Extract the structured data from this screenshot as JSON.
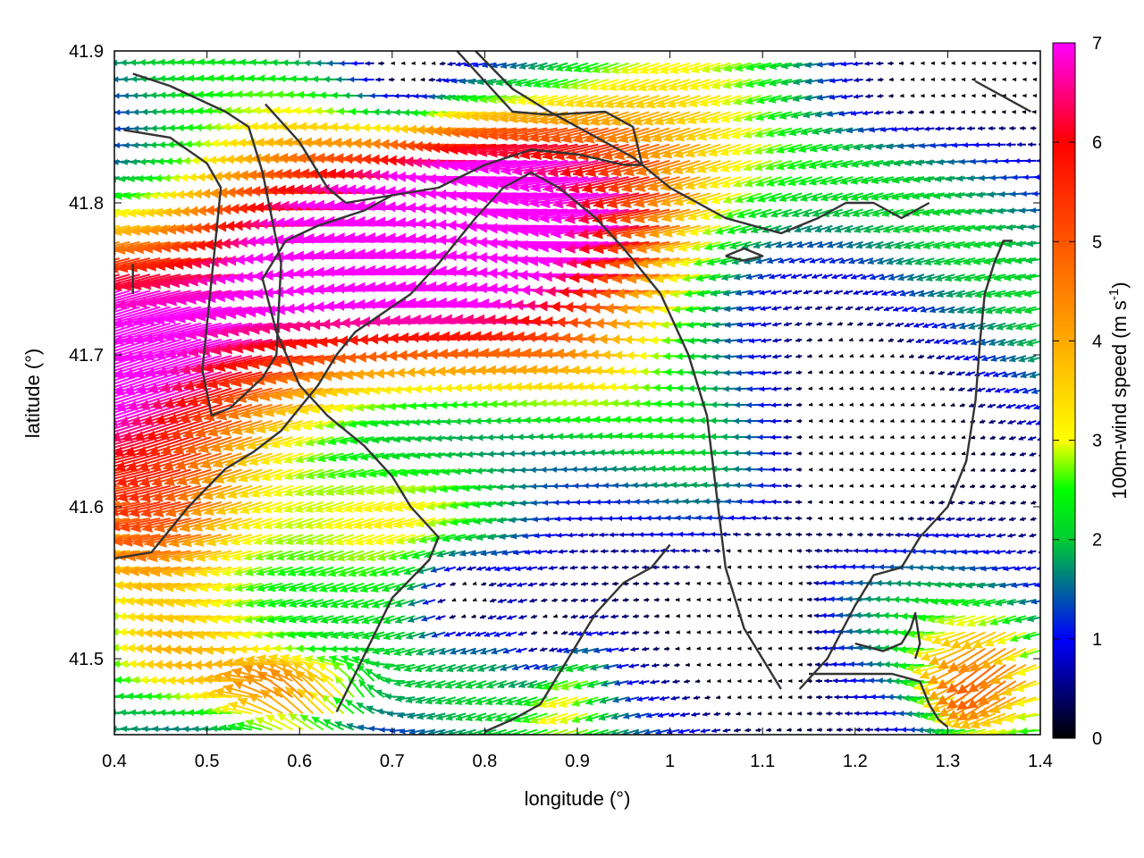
{
  "chart_data": {
    "type": "vector-field",
    "xlabel": "longitude (°)",
    "ylabel": "latitude (°)",
    "colorbar_label": "100m-wind speed (m s",
    "colorbar_label_sup": "-1",
    "colorbar_label_close": ")",
    "xlim": [
      0.4,
      1.4
    ],
    "ylim": [
      41.45,
      41.9
    ],
    "cbar_range": [
      0,
      7
    ],
    "x_ticks": [
      "0.4",
      "0.5",
      "0.6",
      "0.7",
      "0.8",
      "0.9",
      "1",
      "1.1",
      "1.2",
      "1.3",
      "1.4"
    ],
    "y_ticks": [
      "41.5",
      "41.6",
      "41.7",
      "41.8",
      "41.9"
    ],
    "cbar_ticks": [
      "0",
      "1",
      "2",
      "3",
      "4",
      "5",
      "6",
      "7"
    ],
    "colormap": [
      "#000000",
      "#0000ff",
      "#00ff00",
      "#ffff00",
      "#ff9900",
      "#ff0000",
      "#ff00ff"
    ],
    "contour_color": "#333333",
    "arrow_grid_spacing": [
      0.011,
      0.0107
    ],
    "wind_field_description": "mostly easterly flow (arrows pointing west); strongest 6-7 m/s jet along the central valley west of 0.9; weak 0-1 m/s winds in the east around 1.1-1.3 / 41.5-41.7",
    "contours": [
      [
        [
          0.41,
          41.848
        ],
        [
          0.46,
          41.843
        ],
        [
          0.5,
          41.826
        ],
        [
          0.515,
          41.81
        ],
        [
          0.51,
          41.78
        ],
        [
          0.505,
          41.75
        ],
        [
          0.5,
          41.72
        ],
        [
          0.495,
          41.69
        ],
        [
          0.505,
          41.66
        ],
        [
          0.525,
          41.665
        ],
        [
          0.56,
          41.685
        ],
        [
          0.575,
          41.7
        ],
        [
          0.58,
          41.76
        ],
        [
          0.56,
          41.82
        ],
        [
          0.545,
          41.85
        ],
        [
          0.52,
          41.86
        ],
        [
          0.46,
          41.877
        ],
        [
          0.42,
          41.885
        ]
      ],
      [
        [
          0.563,
          41.865
        ],
        [
          0.6,
          41.84
        ],
        [
          0.63,
          41.81
        ],
        [
          0.65,
          41.8
        ],
        [
          0.7,
          41.805
        ],
        [
          0.75,
          41.81
        ],
        [
          0.8,
          41.825
        ],
        [
          0.85,
          41.835
        ],
        [
          0.9,
          41.832
        ],
        [
          0.95,
          41.825
        ],
        [
          0.97,
          41.825
        ],
        [
          0.96,
          41.85
        ],
        [
          0.93,
          41.86
        ],
        [
          0.87,
          41.858
        ],
        [
          0.83,
          41.86
        ],
        [
          0.8,
          41.88
        ],
        [
          0.77,
          41.9
        ]
      ],
      [
        [
          0.4,
          41.566
        ],
        [
          0.44,
          41.57
        ],
        [
          0.48,
          41.6
        ],
        [
          0.52,
          41.625
        ],
        [
          0.55,
          41.636
        ],
        [
          0.58,
          41.65
        ],
        [
          0.62,
          41.68
        ],
        [
          0.64,
          41.7
        ],
        [
          0.66,
          41.715
        ],
        [
          0.72,
          41.74
        ],
        [
          0.75,
          41.76
        ],
        [
          0.79,
          41.79
        ],
        [
          0.82,
          41.81
        ],
        [
          0.85,
          41.82
        ],
        [
          0.88,
          41.81
        ],
        [
          0.92,
          41.79
        ],
        [
          0.95,
          41.77
        ],
        [
          0.99,
          41.74
        ],
        [
          1.02,
          41.7
        ],
        [
          1.04,
          41.66
        ],
        [
          1.05,
          41.61
        ],
        [
          1.06,
          41.56
        ],
        [
          1.08,
          41.52
        ],
        [
          1.1,
          41.5
        ],
        [
          1.12,
          41.48
        ]
      ],
      [
        [
          0.64,
          41.465
        ],
        [
          0.66,
          41.49
        ],
        [
          0.7,
          41.54
        ],
        [
          0.74,
          41.565
        ],
        [
          0.75,
          41.58
        ],
        [
          0.72,
          41.6
        ],
        [
          0.7,
          41.62
        ],
        [
          0.67,
          41.64
        ],
        [
          0.63,
          41.66
        ],
        [
          0.6,
          41.68
        ],
        [
          0.575,
          41.715
        ],
        [
          0.56,
          41.75
        ],
        [
          0.585,
          41.775
        ],
        [
          0.62,
          41.785
        ],
        [
          0.67,
          41.795
        ],
        [
          0.7,
          41.805
        ]
      ],
      [
        [
          0.79,
          41.9
        ],
        [
          0.83,
          41.875
        ],
        [
          0.87,
          41.86
        ],
        [
          0.9,
          41.85
        ],
        [
          0.93,
          41.84
        ],
        [
          0.96,
          41.83
        ],
        [
          0.98,
          41.82
        ],
        [
          1.0,
          41.81
        ],
        [
          1.03,
          41.8
        ],
        [
          1.06,
          41.79
        ],
        [
          1.09,
          41.785
        ],
        [
          1.12,
          41.78
        ],
        [
          1.16,
          41.79
        ],
        [
          1.19,
          41.8
        ],
        [
          1.22,
          41.8
        ],
        [
          1.25,
          41.79
        ],
        [
          1.28,
          41.8
        ]
      ],
      [
        [
          1.06,
          41.765
        ],
        [
          1.08,
          41.762
        ],
        [
          1.1,
          41.765
        ],
        [
          1.08,
          41.77
        ],
        [
          1.06,
          41.765
        ]
      ],
      [
        [
          1.14,
          41.48
        ],
        [
          1.17,
          41.5
        ],
        [
          1.2,
          41.535
        ],
        [
          1.22,
          41.555
        ],
        [
          1.25,
          41.56
        ],
        [
          1.27,
          41.58
        ],
        [
          1.3,
          41.6
        ],
        [
          1.32,
          41.63
        ],
        [
          1.33,
          41.67
        ],
        [
          1.335,
          41.71
        ],
        [
          1.34,
          41.74
        ],
        [
          1.35,
          41.76
        ],
        [
          1.36,
          41.775
        ],
        [
          1.37,
          41.775
        ]
      ],
      [
        [
          1.15,
          41.49
        ],
        [
          1.2,
          41.49
        ],
        [
          1.24,
          41.49
        ],
        [
          1.27,
          41.485
        ],
        [
          1.28,
          41.47
        ],
        [
          1.29,
          41.46
        ],
        [
          1.3,
          41.455
        ]
      ],
      [
        [
          1.2,
          41.51
        ],
        [
          1.23,
          41.505
        ],
        [
          1.25,
          41.51
        ],
        [
          1.26,
          41.52
        ],
        [
          1.265,
          41.53
        ],
        [
          1.27,
          41.51
        ],
        [
          1.265,
          41.5
        ]
      ],
      [
        [
          0.8,
          41.452
        ],
        [
          0.83,
          41.46
        ],
        [
          0.86,
          41.47
        ],
        [
          0.88,
          41.49
        ],
        [
          0.9,
          41.51
        ],
        [
          0.92,
          41.53
        ],
        [
          0.95,
          41.55
        ],
        [
          0.98,
          41.56
        ],
        [
          1.0,
          41.575
        ]
      ],
      [
        [
          0.42,
          41.76
        ],
        [
          0.42,
          41.75
        ],
        [
          0.42,
          41.74
        ]
      ],
      [
        [
          1.33,
          41.88
        ],
        [
          1.36,
          41.87
        ],
        [
          1.39,
          41.86
        ]
      ]
    ]
  }
}
